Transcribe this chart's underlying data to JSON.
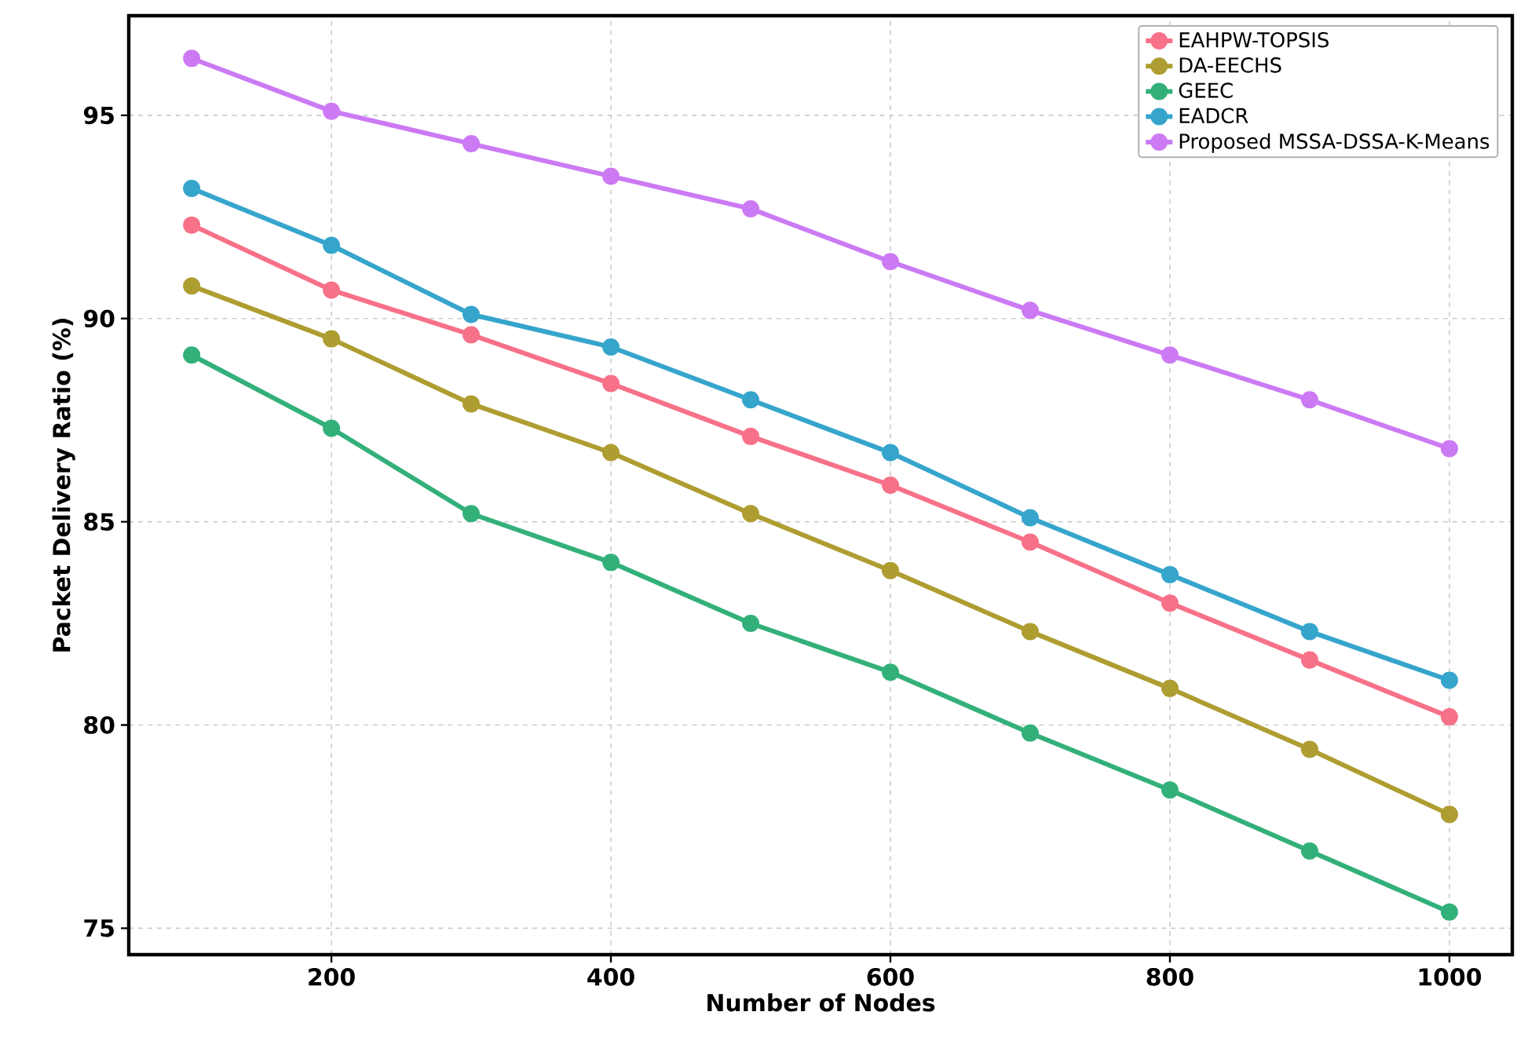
{
  "chart_data": {
    "type": "line",
    "xlabel": "Number of Nodes",
    "ylabel": "Packet Delivery Ratio (%)",
    "x": [
      100,
      200,
      300,
      400,
      500,
      600,
      700,
      800,
      900,
      1000
    ],
    "series": [
      {
        "name": "EAHPW-TOPSIS",
        "color": "#f77189",
        "values": [
          92.3,
          90.7,
          89.6,
          88.4,
          87.1,
          85.9,
          84.5,
          83.0,
          81.6,
          80.2
        ]
      },
      {
        "name": "DA-EECHS",
        "color": "#ae9d31",
        "values": [
          90.8,
          89.5,
          87.9,
          86.7,
          85.2,
          83.8,
          82.3,
          80.9,
          79.4,
          77.8
        ]
      },
      {
        "name": "GEEC",
        "color": "#33b07a",
        "values": [
          89.1,
          87.3,
          85.2,
          84.0,
          82.5,
          81.3,
          79.8,
          78.4,
          76.9,
          75.4
        ]
      },
      {
        "name": "EADCR",
        "color": "#36a5cc",
        "values": [
          93.2,
          91.8,
          90.1,
          89.3,
          88.0,
          86.7,
          85.1,
          83.7,
          82.3,
          81.1
        ]
      },
      {
        "name": "Proposed MSSA-DSSA-K-Means",
        "color": "#cc7af4",
        "values": [
          96.4,
          95.1,
          94.3,
          93.5,
          92.7,
          91.4,
          90.2,
          89.1,
          88.0,
          86.8
        ]
      }
    ],
    "xlim": [
      55,
      1045
    ],
    "ylim": [
      74.35,
      97.45
    ],
    "xticks": [
      200,
      400,
      600,
      800,
      1000
    ],
    "yticks": [
      75,
      80,
      85,
      90,
      95
    ],
    "grid": true,
    "legend": "top right",
    "marker": "circle",
    "line_style": "solid"
  }
}
